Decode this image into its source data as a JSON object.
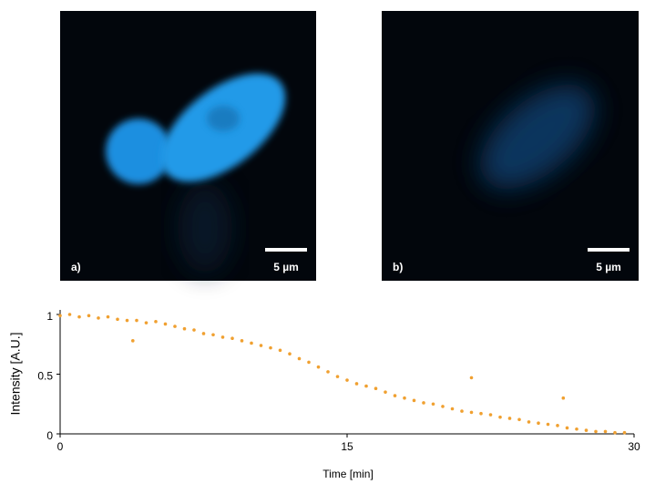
{
  "panels": [
    {
      "label": "a)",
      "scale_bar": "5 µm"
    },
    {
      "label": "b)",
      "scale_bar": "5 µm"
    }
  ],
  "chart_data": {
    "type": "scatter",
    "xlabel": "Time [min]",
    "ylabel": "Intensity [A.U.]",
    "color": "#f0a030",
    "xlim": [
      0,
      30
    ],
    "xticks": [
      0,
      15,
      30
    ],
    "ylim": [
      0,
      1
    ],
    "yticks": [
      0,
      0.5,
      1
    ],
    "x": [
      0,
      0.5,
      1,
      1.5,
      2,
      2.5,
      3,
      3.5,
      4,
      4.5,
      5,
      5.5,
      6,
      6.5,
      7,
      7.5,
      8,
      8.5,
      9,
      9.5,
      10,
      10.5,
      11,
      11.5,
      12,
      12.5,
      13,
      13.5,
      14,
      14.5,
      15,
      15.5,
      16,
      16.5,
      17,
      17.5,
      18,
      18.5,
      19,
      19.5,
      20,
      20.5,
      21,
      21.5,
      22,
      22.5,
      23,
      23.5,
      24,
      24.5,
      25,
      25.5,
      26,
      26.5,
      27,
      27.5,
      28,
      28.5,
      29,
      29.5,
      3.8,
      21.5,
      26.3
    ],
    "y": [
      0.99,
      1,
      0.98,
      0.99,
      0.97,
      0.98,
      0.96,
      0.95,
      0.95,
      0.93,
      0.94,
      0.92,
      0.9,
      0.88,
      0.87,
      0.84,
      0.83,
      0.81,
      0.8,
      0.78,
      0.76,
      0.74,
      0.72,
      0.7,
      0.67,
      0.63,
      0.6,
      0.56,
      0.52,
      0.48,
      0.45,
      0.42,
      0.4,
      0.38,
      0.35,
      0.32,
      0.3,
      0.28,
      0.26,
      0.25,
      0.23,
      0.21,
      0.19,
      0.18,
      0.17,
      0.16,
      0.14,
      0.13,
      0.12,
      0.1,
      0.09,
      0.08,
      0.07,
      0.05,
      0.04,
      0.03,
      0.02,
      0.02,
      0.01,
      0.01,
      0.78,
      0.47,
      0.3
    ]
  }
}
